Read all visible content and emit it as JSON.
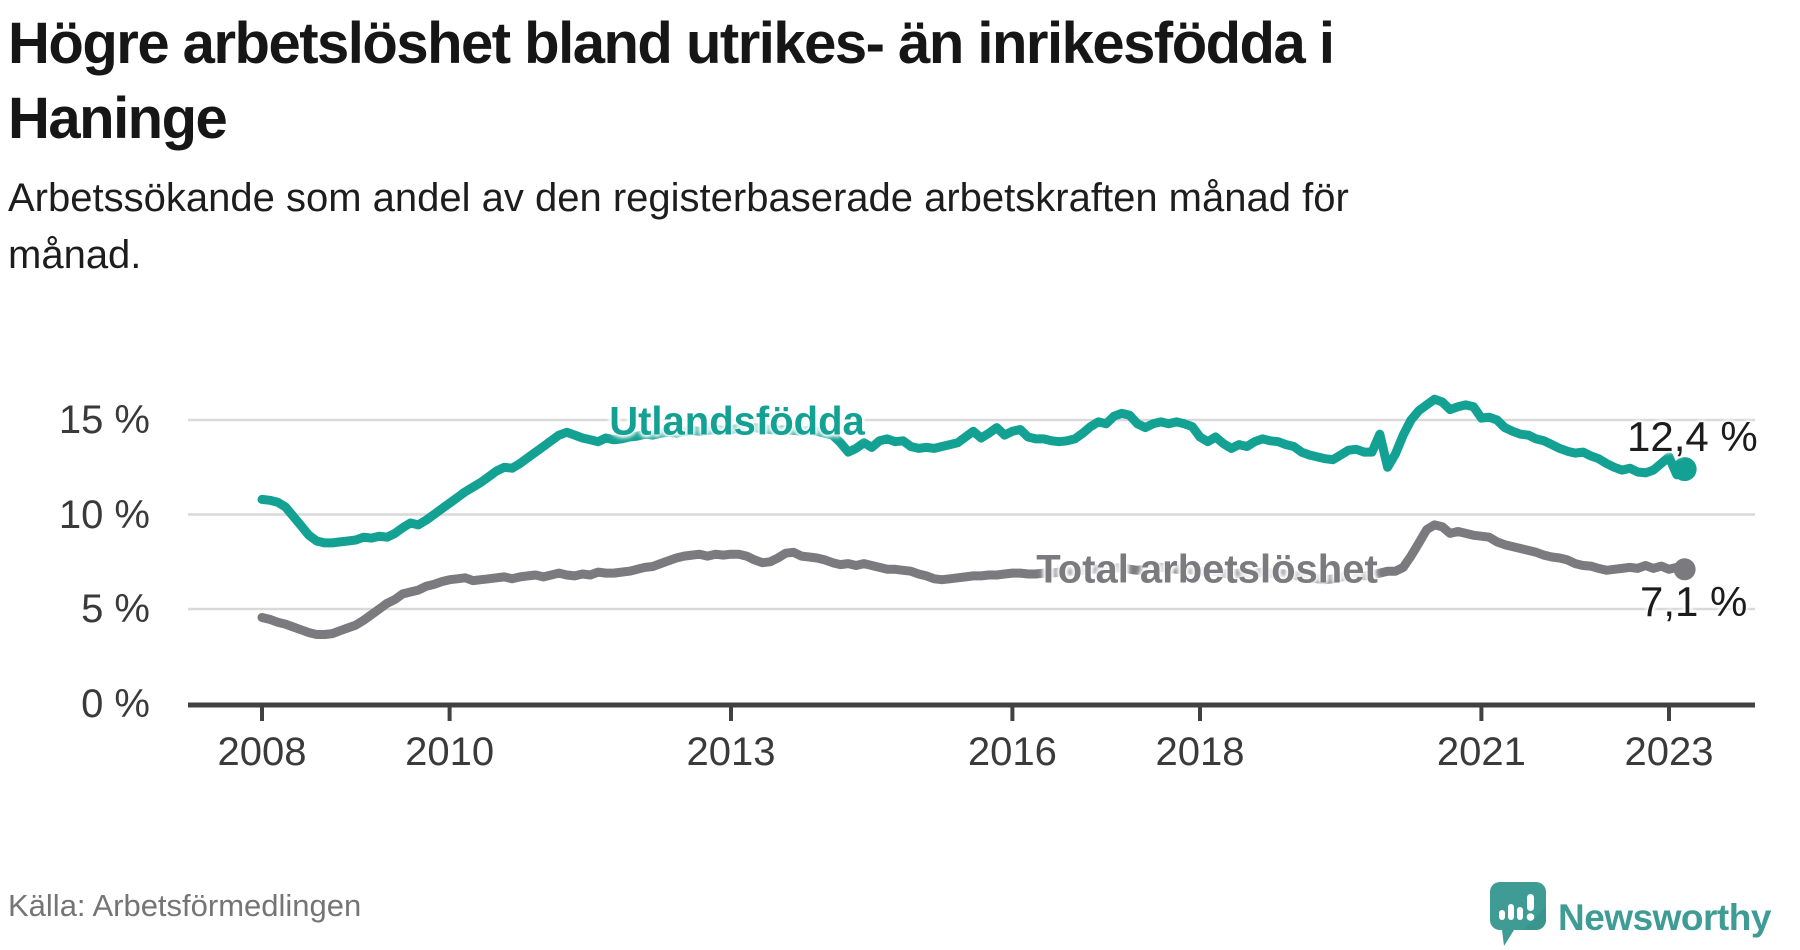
{
  "title": "Högre arbetslöshet bland utrikes- än inrikesfödda i\nHaninge",
  "subtitle": "Arbetssökande som andel av den registerbaserade arbetskraften månad för\nmånad.",
  "source": "Källa: Arbetsförmedlingen",
  "branding": {
    "wordmark": "Newsworthy",
    "logo_icon": "speech-bubble-bar-chart-icon",
    "teal": "#3E9C95"
  },
  "colors": {
    "utlandsfodda": "#12A192",
    "total": "#7A7A7F",
    "grid": "#D9D9D9",
    "axis": "#414141",
    "value_text": "#1C1C1C"
  },
  "chart_data": {
    "type": "line",
    "title": "Högre arbetslöshet bland utrikes- än inrikesfödda i Haninge",
    "subtitle": "Arbetssökande som andel av den registerbaserade arbetskraften månad för månad.",
    "x_start_month": "2008-01",
    "x_end_month": "2023-03",
    "x_axis": {
      "ticks": [
        2008,
        2010,
        2013,
        2016,
        2018,
        2021,
        2023
      ],
      "tick_labels": [
        "2008",
        "2010",
        "2013",
        "2016",
        "2018",
        "2021",
        "2023"
      ]
    },
    "y_axis": {
      "ticks": [
        0,
        5,
        10,
        15
      ],
      "tick_labels": [
        "0 %",
        "5 %",
        "10 %",
        "15 %"
      ],
      "unit": "%",
      "ylim": [
        0,
        17
      ],
      "grid": true
    },
    "legend_position": "inline-labels",
    "series": [
      {
        "name": "Utlandsfödda",
        "color": "#12A192",
        "end_label": "12,4 %",
        "end_value": 12.4,
        "values": [
          10.8,
          10.75,
          10.65,
          10.4,
          9.9,
          9.4,
          8.9,
          8.6,
          8.5,
          8.5,
          8.55,
          8.6,
          8.65,
          8.8,
          8.75,
          8.85,
          8.8,
          9.0,
          9.3,
          9.55,
          9.45,
          9.7,
          10.0,
          10.3,
          10.6,
          10.9,
          11.2,
          11.45,
          11.7,
          12.0,
          12.3,
          12.5,
          12.45,
          12.7,
          13.0,
          13.3,
          13.6,
          13.9,
          14.2,
          14.35,
          14.2,
          14.05,
          13.95,
          13.85,
          14.05,
          13.95,
          14.0,
          14.1,
          14.15,
          14.25,
          14.2,
          14.3,
          14.35,
          14.3,
          14.4,
          14.45,
          14.4,
          14.45,
          14.5,
          14.45,
          14.5,
          14.55,
          14.5,
          14.6,
          14.55,
          14.5,
          14.45,
          14.5,
          14.45,
          14.4,
          14.45,
          14.4,
          14.3,
          14.2,
          13.8,
          13.3,
          13.5,
          13.8,
          13.55,
          13.9,
          14.0,
          13.85,
          13.9,
          13.6,
          13.5,
          13.55,
          13.5,
          13.6,
          13.7,
          13.8,
          14.1,
          14.4,
          14.05,
          14.3,
          14.6,
          14.2,
          14.4,
          14.5,
          14.1,
          14.0,
          14.0,
          13.9,
          13.85,
          13.9,
          14.0,
          14.3,
          14.65,
          14.9,
          14.8,
          15.2,
          15.35,
          15.25,
          14.8,
          14.6,
          14.8,
          14.9,
          14.8,
          14.9,
          14.8,
          14.65,
          14.1,
          13.85,
          14.1,
          13.75,
          13.5,
          13.7,
          13.6,
          13.85,
          14.0,
          13.9,
          13.85,
          13.7,
          13.6,
          13.3,
          13.15,
          13.05,
          12.95,
          12.9,
          13.15,
          13.4,
          13.45,
          13.3,
          13.3,
          14.25,
          12.5,
          13.2,
          14.2,
          15.0,
          15.5,
          15.8,
          16.1,
          15.95,
          15.55,
          15.7,
          15.8,
          15.7,
          15.1,
          15.15,
          15.0,
          14.6,
          14.4,
          14.25,
          14.2,
          14.0,
          13.9,
          13.7,
          13.5,
          13.35,
          13.25,
          13.3,
          13.1,
          12.95,
          12.7,
          12.5,
          12.35,
          12.45,
          12.25,
          12.2,
          12.35,
          12.7,
          13.05,
          12.1,
          12.4
        ]
      },
      {
        "name": "Total arbetslöshet",
        "color": "#7A7A7F",
        "end_label": "7,1 %",
        "end_value": 7.1,
        "values": [
          4.55,
          4.45,
          4.3,
          4.2,
          4.05,
          3.9,
          3.75,
          3.65,
          3.65,
          3.7,
          3.85,
          4.0,
          4.15,
          4.4,
          4.7,
          5.0,
          5.3,
          5.5,
          5.8,
          5.9,
          6.0,
          6.2,
          6.3,
          6.45,
          6.55,
          6.6,
          6.65,
          6.5,
          6.55,
          6.6,
          6.65,
          6.7,
          6.6,
          6.7,
          6.75,
          6.8,
          6.7,
          6.8,
          6.9,
          6.8,
          6.75,
          6.85,
          6.8,
          6.95,
          6.9,
          6.9,
          6.95,
          7.0,
          7.1,
          7.2,
          7.25,
          7.4,
          7.55,
          7.7,
          7.8,
          7.85,
          7.9,
          7.8,
          7.9,
          7.85,
          7.9,
          7.9,
          7.8,
          7.6,
          7.45,
          7.5,
          7.7,
          7.95,
          8.0,
          7.8,
          7.75,
          7.7,
          7.6,
          7.45,
          7.35,
          7.4,
          7.3,
          7.4,
          7.3,
          7.2,
          7.1,
          7.1,
          7.05,
          7.0,
          6.85,
          6.75,
          6.6,
          6.55,
          6.6,
          6.65,
          6.7,
          6.75,
          6.75,
          6.8,
          6.8,
          6.85,
          6.9,
          6.9,
          6.85,
          6.85,
          6.9,
          6.9,
          6.95,
          7.0,
          7.0,
          7.05,
          7.1,
          7.1,
          7.1,
          7.15,
          7.2,
          7.1,
          7.05,
          7.1,
          7.15,
          7.2,
          7.15,
          7.1,
          7.1,
          7.05,
          7.0,
          6.95,
          7.0,
          6.9,
          6.85,
          6.9,
          6.85,
          6.9,
          6.95,
          6.9,
          6.9,
          6.85,
          6.8,
          6.7,
          6.65,
          6.6,
          6.55,
          6.6,
          6.7,
          6.75,
          6.8,
          6.75,
          6.8,
          6.9,
          7.0,
          7.0,
          7.2,
          7.8,
          8.5,
          9.2,
          9.45,
          9.35,
          9.0,
          9.1,
          9.0,
          8.9,
          8.85,
          8.8,
          8.55,
          8.4,
          8.3,
          8.2,
          8.1,
          8.0,
          7.85,
          7.75,
          7.7,
          7.6,
          7.4,
          7.3,
          7.27,
          7.15,
          7.05,
          7.1,
          7.15,
          7.2,
          7.15,
          7.3,
          7.15,
          7.27,
          7.1,
          7.2,
          7.1
        ]
      }
    ]
  }
}
